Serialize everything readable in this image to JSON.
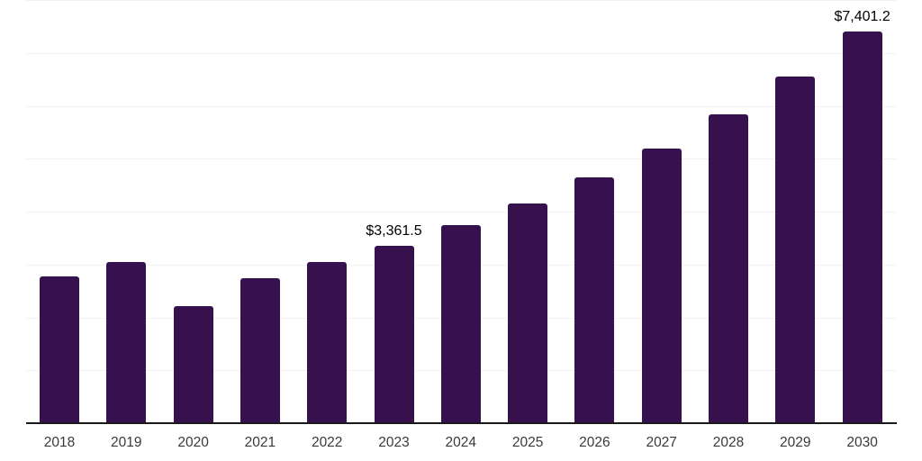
{
  "chart_data": {
    "type": "bar",
    "title": "",
    "xlabel": "",
    "ylabel": "",
    "categories": [
      "2018",
      "2019",
      "2020",
      "2021",
      "2022",
      "2023",
      "2024",
      "2025",
      "2026",
      "2027",
      "2028",
      "2029",
      "2030"
    ],
    "values": [
      2780,
      3050,
      2220,
      2745,
      3040,
      3361.5,
      3740,
      4160,
      4645,
      5195,
      5835,
      6550,
      7401.2
    ],
    "ylim": [
      0,
      8000
    ],
    "gridline_step": 1000,
    "grid": "horizontal",
    "legend_position": "none",
    "annotations": [
      {
        "category": "2023",
        "label": "$3,361.5"
      },
      {
        "category": "2030",
        "label": "$7,401.2"
      }
    ],
    "colors": {
      "bar": "#36114D",
      "background": "#ffffff",
      "gridline": "#f2f2f2",
      "axis_line": "#1a1a1a",
      "tick_label": "#3a3a3a",
      "annotation_text": "#000000"
    }
  }
}
